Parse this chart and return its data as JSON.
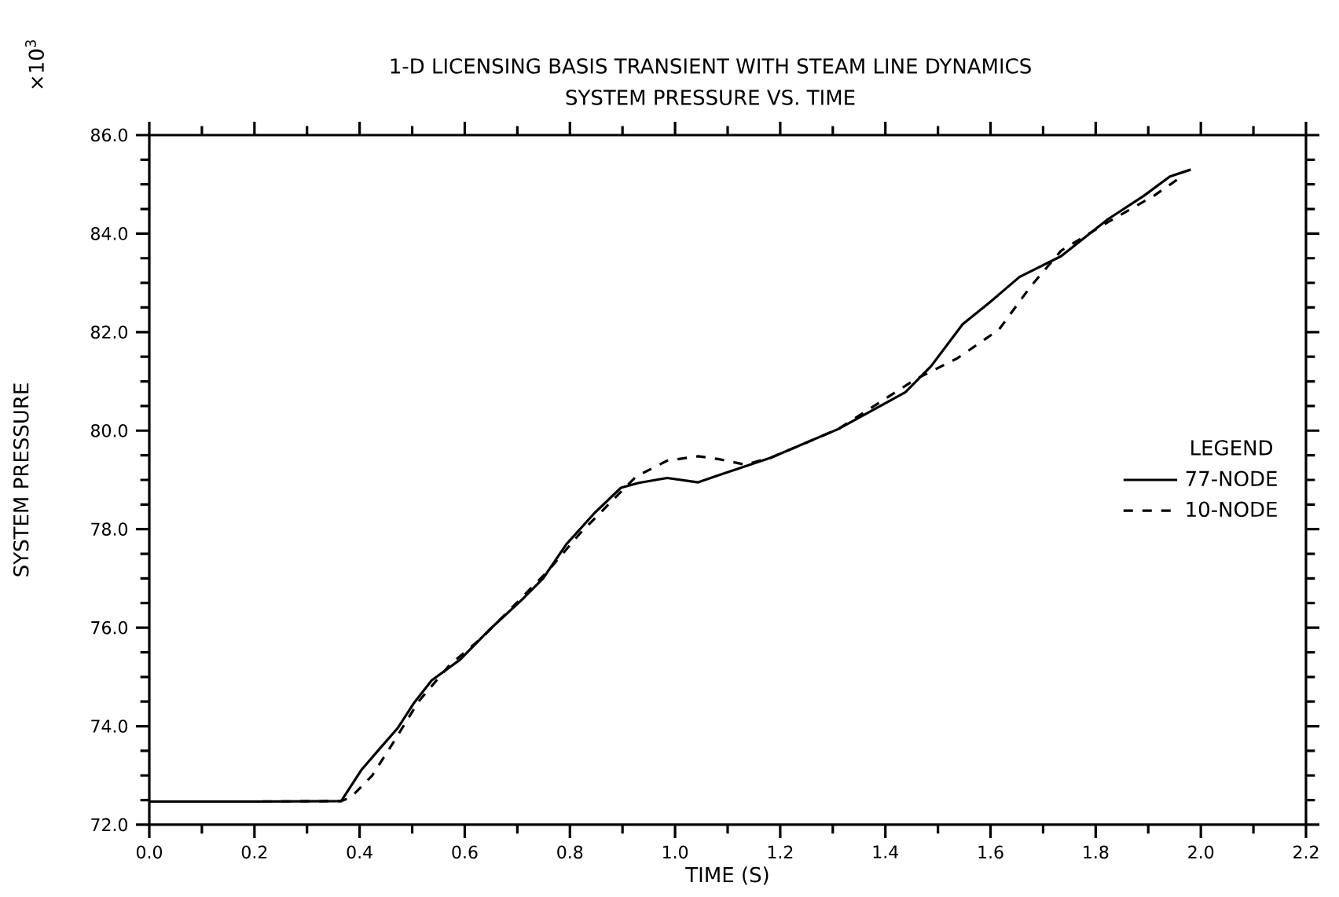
{
  "chart_data": {
    "type": "line",
    "title": "1-D LICENSING BASIS TRANSIENT WITH STEAM LINE DYNAMICS",
    "subtitle": "SYSTEM PRESSURE VS. TIME",
    "xlabel": "TIME (S)",
    "ylabel": "SYSTEM PRESSURE",
    "annotations": [
      "×10$^{3}$"
    ],
    "legend_title": "LEGEND",
    "legend": "right",
    "xlim": [
      0,
      2.2
    ],
    "ylim": [
      72,
      86
    ],
    "xticks": [
      {
        "value": 0,
        "label": "0.0"
      },
      {
        "value": 0.2,
        "label": "0.2"
      },
      {
        "value": 0.4,
        "label": "0.4"
      },
      {
        "value": 0.6,
        "label": "0.6"
      },
      {
        "value": 0.8,
        "label": "0.8"
      },
      {
        "value": 1.0,
        "label": "1.0"
      },
      {
        "value": 1.2,
        "label": "1.2"
      },
      {
        "value": 1.4,
        "label": "1.4"
      },
      {
        "value": 1.6,
        "label": "1.6"
      },
      {
        "value": 1.8,
        "label": "1.8"
      },
      {
        "value": 2.0,
        "label": "2.0"
      },
      {
        "value": 2.2,
        "label": "2.2"
      }
    ],
    "yticks": [
      {
        "value": 72,
        "label": "72.0"
      },
      {
        "value": 74,
        "label": "74.0"
      },
      {
        "value": 76,
        "label": "76.0"
      },
      {
        "value": 78,
        "label": "78.0"
      },
      {
        "value": 80,
        "label": "80.0"
      },
      {
        "value": 82,
        "label": "82.0"
      },
      {
        "value": 84,
        "label": "84.0"
      },
      {
        "value": 86,
        "label": "86.0"
      }
    ],
    "marker": "none",
    "series": [
      {
        "name": "77-NODE",
        "color": "#000000",
        "line_style": "solid",
        "x": [
          0,
          0.2,
          0.365,
          0.404,
          0.438,
          0.473,
          0.502,
          0.537,
          0.591,
          0.65,
          0.709,
          0.749,
          0.793,
          0.847,
          0.897,
          0.931,
          0.985,
          1.044,
          1.084,
          1.182,
          1.31,
          1.438,
          1.487,
          1.547,
          1.597,
          1.655,
          1.734,
          1.823,
          1.892,
          1.941,
          1.981
        ],
        "values": [
          72.47,
          72.47,
          72.48,
          73.12,
          73.54,
          73.97,
          74.45,
          74.93,
          75.35,
          75.99,
          76.57,
          77.0,
          77.69,
          78.33,
          78.84,
          78.94,
          79.04,
          78.95,
          79.1,
          79.45,
          80.03,
          80.78,
          81.31,
          82.16,
          82.59,
          83.12,
          83.54,
          84.29,
          84.77,
          85.16,
          85.3
        ]
      },
      {
        "name": "10-NODE",
        "color": "#000000",
        "line_style": "dashed",
        "x": [
          0,
          0.2,
          0.365,
          0.384,
          0.424,
          0.463,
          0.512,
          0.571,
          0.631,
          0.69,
          0.759,
          0.818,
          0.887,
          0.926,
          0.985,
          1.044,
          1.084,
          1.133,
          1.182,
          1.31,
          1.457,
          1.537,
          1.616,
          1.675,
          1.734,
          1.823,
          1.911,
          1.961
        ],
        "values": [
          72.47,
          72.47,
          72.48,
          72.56,
          73.0,
          73.65,
          74.5,
          75.24,
          75.78,
          76.41,
          77.16,
          77.9,
          78.65,
          79.07,
          79.39,
          79.48,
          79.42,
          79.31,
          79.45,
          80.03,
          81.04,
          81.47,
          82.05,
          82.91,
          83.65,
          84.23,
          84.77,
          85.14
        ]
      }
    ]
  }
}
